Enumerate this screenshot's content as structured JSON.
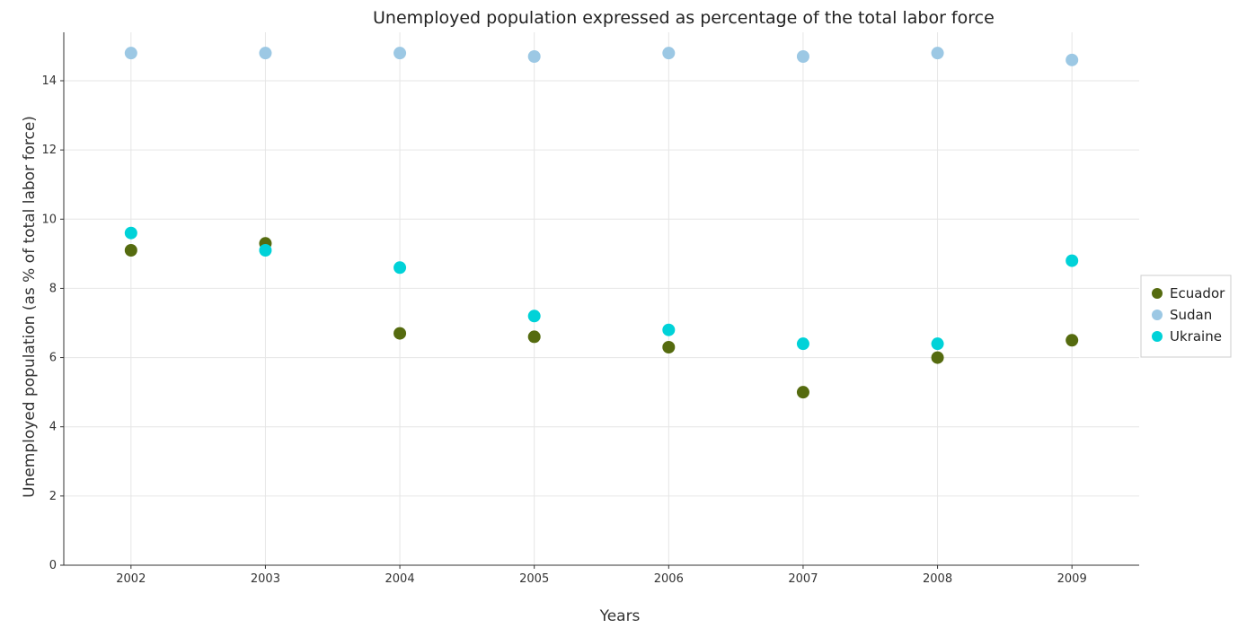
{
  "chart_data": {
    "type": "scatter",
    "title": "Unemployed population expressed as percentage of the total labor force",
    "xlabel": "Years",
    "ylabel": "Unemployed population (as % of total labor force)",
    "categories": [
      "2002",
      "2003",
      "2004",
      "2005",
      "2006",
      "2007",
      "2008",
      "2009"
    ],
    "ylim": [
      0,
      15.4
    ],
    "yticks": [
      0,
      2,
      4,
      6,
      8,
      10,
      12,
      14
    ],
    "grid": true,
    "legend_position": "right",
    "series": [
      {
        "name": "Ecuador",
        "color": "#556b0f",
        "values": [
          9.1,
          9.3,
          6.7,
          6.6,
          6.3,
          5.0,
          6.0,
          6.5
        ]
      },
      {
        "name": "Sudan",
        "color": "#9cc8e4",
        "values": [
          14.8,
          14.8,
          14.8,
          14.7,
          14.8,
          14.7,
          14.8,
          14.6
        ]
      },
      {
        "name": "Ukraine",
        "color": "#00d2d8",
        "values": [
          9.6,
          9.1,
          8.6,
          7.2,
          6.8,
          6.4,
          6.4,
          8.8
        ]
      }
    ]
  }
}
